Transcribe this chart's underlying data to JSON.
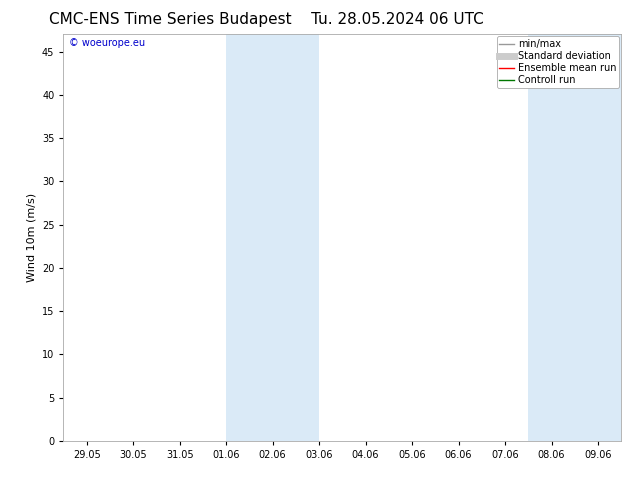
{
  "title": "CMC-ENS Time Series Budapest",
  "subtitle": "Tu. 28.05.2024 06 UTC",
  "ylabel": "Wind 10m (m/s)",
  "watermark": "© woeurope.eu",
  "x_tick_labels": [
    "29.05",
    "30.05",
    "31.05",
    "01.06",
    "02.06",
    "03.06",
    "04.06",
    "05.06",
    "06.06",
    "07.06",
    "08.06",
    "09.06"
  ],
  "x_tick_positions": [
    0,
    1,
    2,
    3,
    4,
    5,
    6,
    7,
    8,
    9,
    10,
    11
  ],
  "ylim": [
    0,
    47
  ],
  "yticks": [
    0,
    5,
    10,
    15,
    20,
    25,
    30,
    35,
    40,
    45
  ],
  "shaded_regions": [
    [
      3.0,
      4.0
    ],
    [
      4.0,
      5.0
    ],
    [
      9.5,
      10.5
    ],
    [
      10.5,
      11.5
    ]
  ],
  "shade_color": "#daeaf7",
  "background_color": "#ffffff",
  "legend_items": [
    {
      "label": "min/max",
      "color": "#999999",
      "lw": 1.0,
      "style": "solid"
    },
    {
      "label": "Standard deviation",
      "color": "#cccccc",
      "lw": 5,
      "style": "solid"
    },
    {
      "label": "Ensemble mean run",
      "color": "#ff0000",
      "lw": 1.0,
      "style": "solid"
    },
    {
      "label": "Controll run",
      "color": "#007700",
      "lw": 1.0,
      "style": "solid"
    }
  ],
  "title_fontsize": 11,
  "label_fontsize": 8,
  "tick_fontsize": 7,
  "watermark_fontsize": 7,
  "watermark_color": "#0000cc",
  "figsize": [
    6.34,
    4.9
  ],
  "dpi": 100
}
